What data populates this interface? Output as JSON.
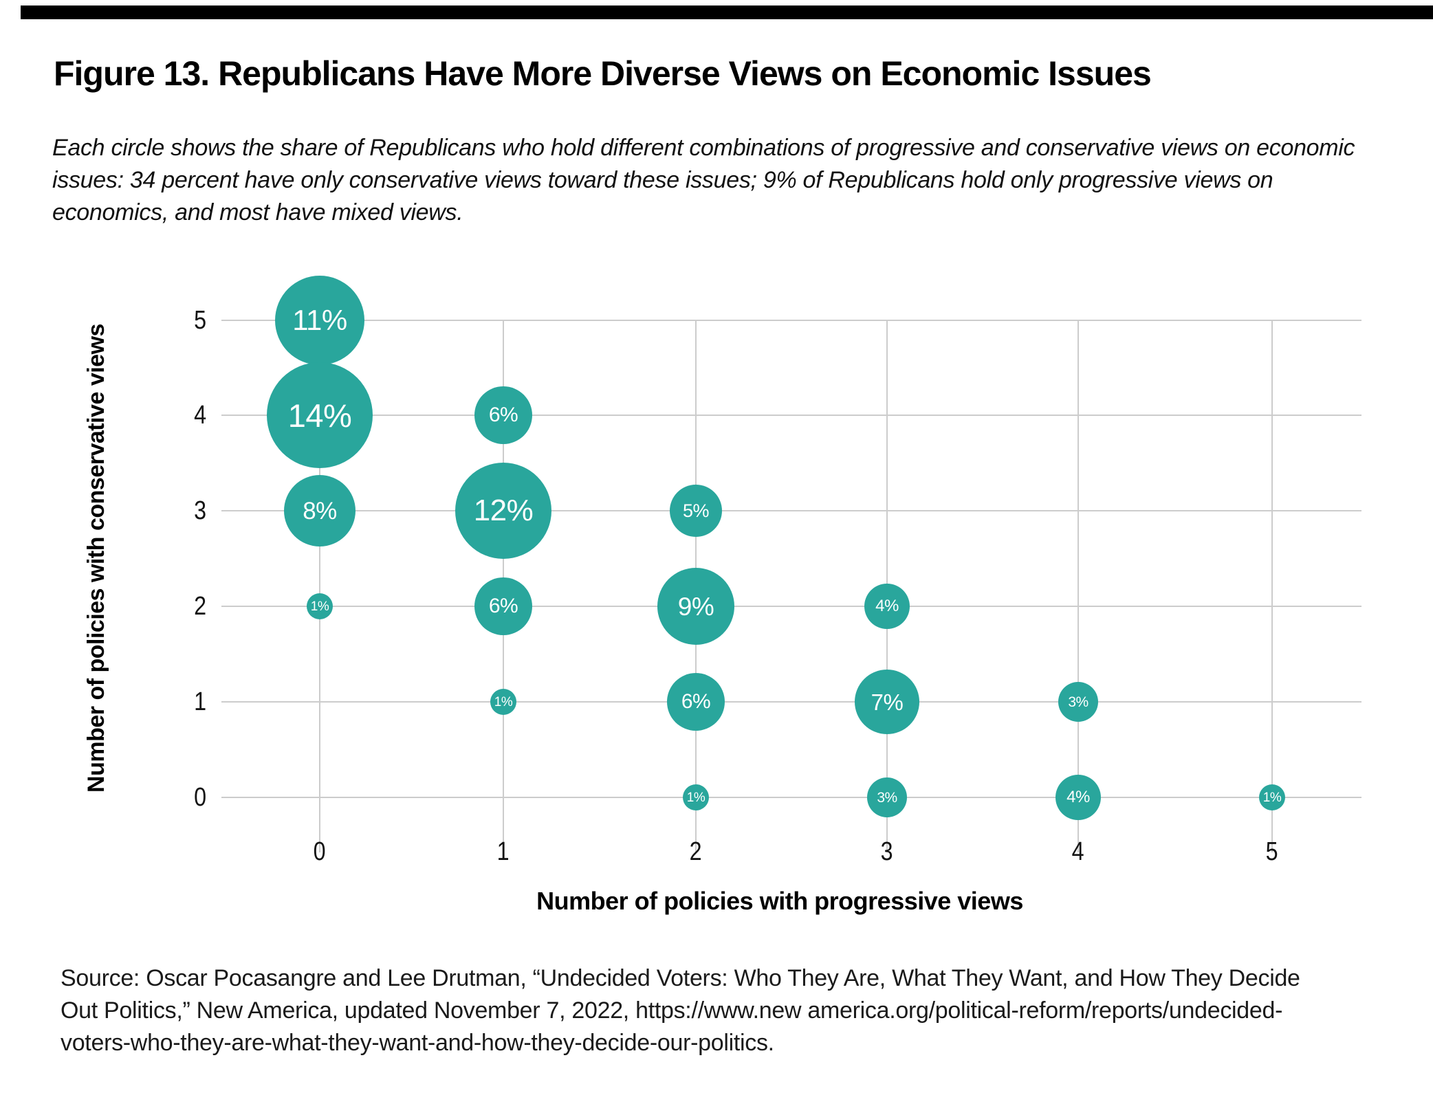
{
  "figure": {
    "title": "Figure 13. Republicans Have More Diverse Views on Economic Issues",
    "description_lines": [
      "Each circle shows the share of Republicans who hold different combinations of progressive and conservative views on economic",
      "issues: 34 percent have only conservative views toward these issues; 9% of Republicans hold only progressive views on",
      "economics, and most have mixed views."
    ],
    "source_lines": [
      "Source: Oscar Pocasangre and Lee Drutman, “Undecided Voters: Who They Are, What They Want, and How They Decide",
      "Out Politics,” New America, updated November 7, 2022, https://www.new america.org/political-reform/reports/undecided-",
      "voters-who-they-are-what-they-want-and-how-they-decide-our-politics."
    ]
  },
  "chart_data": {
    "type": "bubble",
    "title": "Figure 13. Republicans Have More Diverse Views on Economic Issues",
    "xlabel": "Number of policies with progressive views",
    "ylabel": "Number of policies with conservative views",
    "x_ticks": [
      "0",
      "1",
      "2",
      "3",
      "4",
      "5"
    ],
    "y_ticks": [
      "0",
      "1",
      "2",
      "3",
      "4",
      "5"
    ],
    "xlim": [
      0,
      5
    ],
    "ylim": [
      0,
      5
    ],
    "grid": true,
    "gridline_color": "#cccccc",
    "bubble_color": "#29a69c",
    "bubble_label_color": "#ffffff",
    "points": [
      {
        "x": 0,
        "y": 5,
        "value": 11,
        "label": "11%"
      },
      {
        "x": 0,
        "y": 4,
        "value": 14,
        "label": "14%"
      },
      {
        "x": 0,
        "y": 3,
        "value": 8,
        "label": "8%"
      },
      {
        "x": 0,
        "y": 2,
        "value": 1,
        "label": "1%"
      },
      {
        "x": 1,
        "y": 4,
        "value": 6,
        "label": "6%"
      },
      {
        "x": 1,
        "y": 3,
        "value": 12,
        "label": "12%"
      },
      {
        "x": 1,
        "y": 2,
        "value": 6,
        "label": "6%"
      },
      {
        "x": 1,
        "y": 1,
        "value": 1,
        "label": "1%"
      },
      {
        "x": 2,
        "y": 3,
        "value": 5,
        "label": "5%"
      },
      {
        "x": 2,
        "y": 2,
        "value": 9,
        "label": "9%"
      },
      {
        "x": 2,
        "y": 1,
        "value": 6,
        "label": "6%"
      },
      {
        "x": 2,
        "y": 0,
        "value": 1,
        "label": "1%"
      },
      {
        "x": 3,
        "y": 2,
        "value": 4,
        "label": "4%"
      },
      {
        "x": 3,
        "y": 1,
        "value": 7,
        "label": "7%"
      },
      {
        "x": 3,
        "y": 0,
        "value": 3,
        "label": "3%"
      },
      {
        "x": 4,
        "y": 1,
        "value": 3,
        "label": "3%"
      },
      {
        "x": 4,
        "y": 0,
        "value": 4,
        "label": "4%"
      },
      {
        "x": 5,
        "y": 0,
        "value": 1,
        "label": "1%"
      }
    ]
  }
}
